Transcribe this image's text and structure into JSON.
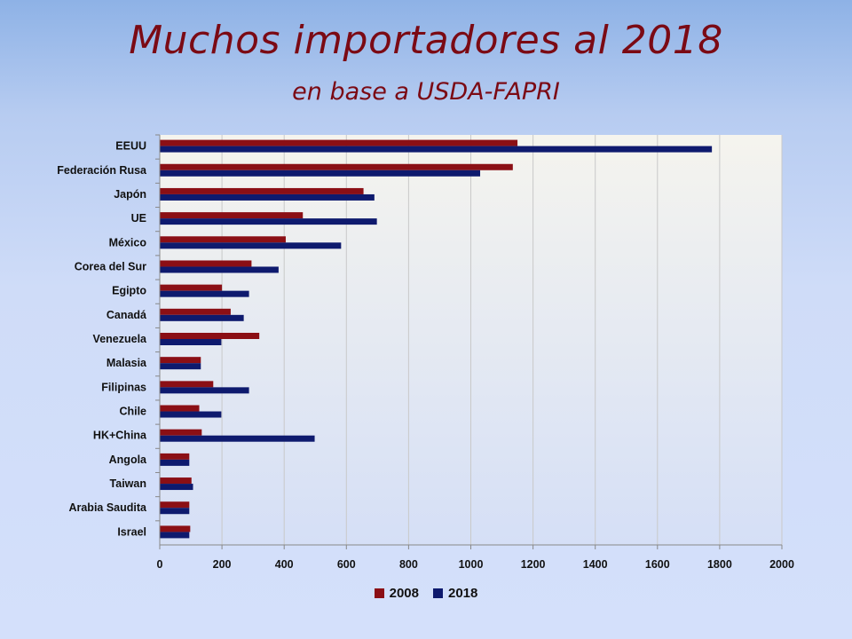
{
  "slide": {
    "title": "Muchos importadores al 2018",
    "subtitle": "en base a USDA-FAPRI"
  },
  "colors": {
    "2008": "#8b0f15",
    "2018": "#0e1a6e"
  },
  "chart_data": {
    "type": "bar",
    "orientation": "horizontal",
    "categories": [
      "EEUU",
      "Federación Rusa",
      "Japón",
      "UE",
      "México",
      "Corea del Sur",
      "Egipto",
      "Canadá",
      "Venezuela",
      "Malasia",
      "Filipinas",
      "Chile",
      "HK+China",
      "Angola",
      "Taiwan",
      "Arabia Saudita",
      "Israel"
    ],
    "series": [
      {
        "name": "2008",
        "values": [
          1150,
          1135,
          655,
          460,
          405,
          295,
          200,
          228,
          320,
          132,
          172,
          127,
          135,
          95,
          102,
          95,
          98
        ]
      },
      {
        "name": "2018",
        "values": [
          1775,
          1030,
          690,
          698,
          583,
          382,
          287,
          270,
          198,
          132,
          287,
          198,
          498,
          95,
          107,
          95,
          95
        ]
      }
    ],
    "xlim": [
      0,
      2000
    ],
    "xticks": [
      "0",
      "200",
      "400",
      "600",
      "800",
      "1000",
      "1200",
      "1400",
      "1600",
      "1800",
      "2000"
    ],
    "grid": "vertical",
    "legend_position": "bottom"
  }
}
